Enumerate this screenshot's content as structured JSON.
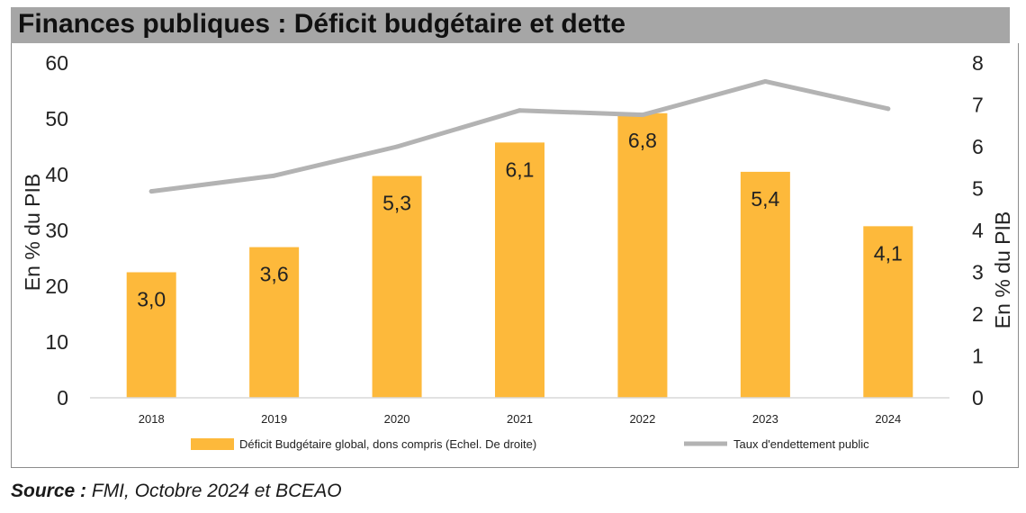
{
  "title": "Finances publiques : Déficit budgétaire et dette",
  "source_label": "Source :",
  "source_text": " FMI, Octobre 2024 et BCEAO",
  "chart_data": {
    "type": "bar",
    "categories": [
      "2018",
      "2019",
      "2020",
      "2021",
      "2022",
      "2023",
      "2024"
    ],
    "series": [
      {
        "name": "Déficit Budgétaire global, dons compris (Echel. De droite)",
        "type": "bar",
        "axis": "right",
        "values": [
          3.0,
          3.6,
          5.3,
          6.1,
          6.8,
          5.4,
          4.1
        ],
        "data_labels": [
          "3,0",
          "3,6",
          "5,3",
          "6,1",
          "6,8",
          "5,4",
          "4,1"
        ],
        "color": "#fdb93b"
      },
      {
        "name": "Taux d'endettement public",
        "type": "line",
        "axis": "left",
        "values": [
          37.0,
          39.8,
          45.0,
          51.5,
          50.7,
          56.7,
          51.8
        ],
        "color": "#b3b3b3"
      }
    ],
    "y_left": {
      "label": "En % du PIB",
      "ticks": [
        "0",
        "10",
        "20",
        "30",
        "40",
        "50",
        "60"
      ],
      "ylim": [
        0,
        60
      ]
    },
    "y_right": {
      "label": "En % du PIB",
      "ticks": [
        "0",
        "1",
        "2",
        "3",
        "4",
        "5",
        "6",
        "7",
        "8"
      ],
      "ylim": [
        0,
        8
      ]
    },
    "grid": false,
    "legend_position": "bottom"
  }
}
